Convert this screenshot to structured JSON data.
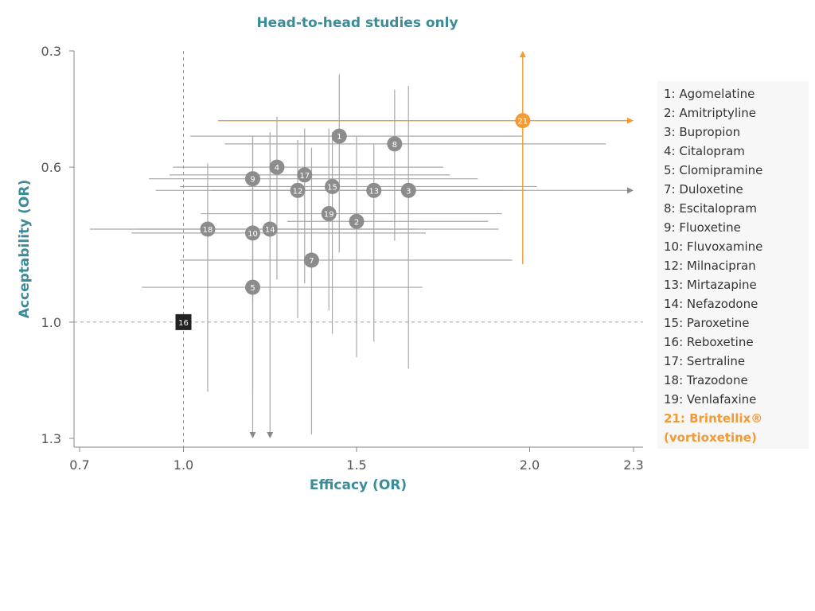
{
  "chart_data": {
    "type": "scatter",
    "title": "Head-to-head studies only",
    "xlabel": "Efficacy (OR)",
    "ylabel": "Acceptability (OR)",
    "xlim": [
      0.7,
      2.3
    ],
    "ylim": [
      0.3,
      1.3
    ],
    "y_inverted": true,
    "xticks": [
      "0.7",
      "1.0",
      "1.5",
      "2.0",
      "2.3"
    ],
    "yticks": [
      "0.3",
      "0.6",
      "1.0",
      "1.3"
    ],
    "reference_lines": {
      "x": 1.0,
      "y": 1.0
    },
    "legend_position": "right",
    "colors": {
      "points": "#8c8c8c",
      "highlight": "#f39a32",
      "reference": "#222222",
      "title": "#3b8c99"
    },
    "points": [
      {
        "id": "1",
        "x": 1.45,
        "y": 0.52,
        "x_ci": [
          1.02,
          1.98
        ],
        "y_ci": [
          0.36,
          0.82
        ]
      },
      {
        "id": "2",
        "x": 1.5,
        "y": 0.74,
        "x_ci": [
          1.3,
          1.88
        ],
        "y_ci": [
          0.52,
          1.09
        ]
      },
      {
        "id": "3",
        "x": 1.65,
        "y": 0.66,
        "x_ci": [
          1.18,
          2.15
        ],
        "y_ci": [
          0.39,
          1.12
        ]
      },
      {
        "id": "4",
        "x": 1.27,
        "y": 0.6,
        "x_ci": [
          0.97,
          1.75
        ],
        "y_ci": [
          0.47,
          0.89
        ]
      },
      {
        "id": "5",
        "x": 1.2,
        "y": 0.91,
        "x_ci": [
          0.88,
          1.69
        ],
        "y_ci": [
          0.61,
          1.18
        ]
      },
      {
        "id": "7",
        "x": 1.37,
        "y": 0.84,
        "x_ci": [
          0.99,
          1.95
        ],
        "y_ci": [
          0.55,
          1.29
        ]
      },
      {
        "id": "8",
        "x": 1.61,
        "y": 0.54,
        "x_ci": [
          1.12,
          2.22
        ],
        "y_ci": [
          0.4,
          0.79
        ]
      },
      {
        "id": "9",
        "x": 1.2,
        "y": 0.63,
        "x_ci": [
          0.9,
          1.85
        ],
        "y_ci": [
          0.52,
          0.95
        ]
      },
      {
        "id": "10",
        "x": 1.2,
        "y": 0.77,
        "x_ci": [
          0.85,
          1.7
        ],
        "y_ci": [
          0.52,
          0.98
        ]
      },
      {
        "id": "12",
        "x": 1.33,
        "y": 0.66,
        "x_ci": [
          0.92,
          1.92
        ],
        "y_ci": [
          0.53,
          0.99
        ]
      },
      {
        "id": "13",
        "x": 1.55,
        "y": 0.66,
        "x_ci": [
          1.08,
          1.99
        ],
        "y_ci": [
          0.54,
          1.05
        ]
      },
      {
        "id": "14",
        "x": 1.25,
        "y": 0.76,
        "x_ci": [
          0.87,
          1.67
        ],
        "y_ci": [
          0.51,
          1.28
        ]
      },
      {
        "id": "15",
        "x": 1.43,
        "y": 0.65,
        "x_ci": [
          0.99,
          2.02
        ],
        "y_ci": [
          0.51,
          1.03
        ]
      },
      {
        "id": "17",
        "x": 1.35,
        "y": 0.62,
        "x_ci": [
          0.96,
          1.77
        ],
        "y_ci": [
          0.5,
          0.9
        ]
      },
      {
        "id": "18",
        "x": 1.07,
        "y": 0.76,
        "x_ci": [
          0.73,
          1.91
        ],
        "y_ci": [
          0.59,
          1.18
        ]
      },
      {
        "id": "19",
        "x": 1.42,
        "y": 0.72,
        "x_ci": [
          1.05,
          1.92
        ],
        "y_ci": [
          0.5,
          0.97
        ]
      },
      {
        "id": "16",
        "x": 1.0,
        "y": 1.0,
        "reference": true
      },
      {
        "id": "21",
        "x": 1.98,
        "y": 0.48,
        "x_ci": [
          1.1,
          2.3
        ],
        "y_ci": [
          0.3,
          0.85
        ],
        "highlight": true
      }
    ],
    "arrows": [
      {
        "from_point": "21",
        "direction": "up"
      },
      {
        "from_point": "21",
        "direction": "right"
      },
      {
        "from_point": "3",
        "direction": "right"
      },
      {
        "from_point": "10",
        "direction": "down"
      },
      {
        "from_point": "14",
        "direction": "down"
      }
    ]
  },
  "legend": {
    "items": [
      "1: Agomelatine",
      "2: Amitriptyline",
      "3: Bupropion",
      "4: Citalopram",
      "5: Clomipramine",
      "7: Duloxetine",
      "8: Escitalopram",
      "9: Fluoxetine",
      "10: Fluvoxamine",
      "12: Milnacipran",
      "13: Mirtazapine",
      "14: Nefazodone",
      "15: Paroxetine",
      "16: Reboxetine",
      "17: Sertraline",
      "18: Trazodone",
      "19: Venlafaxine"
    ],
    "highlight_item": "21: Brintellix® (vortioxetine)"
  }
}
